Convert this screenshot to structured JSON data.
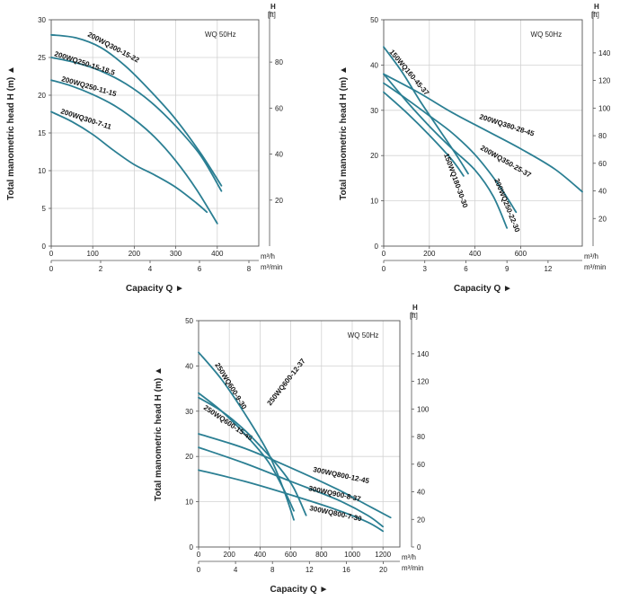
{
  "chart_data": [
    {
      "type": "line",
      "subtitle": "WQ 50Hz",
      "ylabel": "Total manometric head H (m)",
      "y2label": "H",
      "y2unit": "[ft]",
      "xlabel": "Capacity Q",
      "x_unit": "m³/h",
      "x2_unit": "m³/min",
      "xlim": [
        0,
        500
      ],
      "ylim": [
        0,
        30
      ],
      "x_ticks": [
        0,
        100,
        200,
        300,
        400
      ],
      "x2_ticks": [
        "0",
        "2",
        "4",
        "6",
        "8"
      ],
      "x2_max": 8.4,
      "y_ticks": [
        0,
        5,
        10,
        15,
        20,
        25,
        30
      ],
      "y2_ticks": [
        "20",
        "40",
        "60",
        "80"
      ],
      "y2_max": 98.4,
      "series": [
        {
          "name": "200WQ300-15-22",
          "x": [
            0,
            60,
            120,
            180,
            240,
            300,
            360,
            410
          ],
          "values": [
            28,
            27.6,
            26.3,
            23.8,
            20.5,
            16.8,
            12.3,
            8.0
          ]
        },
        {
          "name": "200WQ250-15-18.5",
          "x": [
            0,
            60,
            120,
            180,
            240,
            300,
            360,
            410
          ],
          "values": [
            25,
            24.3,
            23.2,
            21.5,
            19.1,
            15.9,
            12.0,
            7.3
          ]
        },
        {
          "name": "200WQ250-11-15",
          "x": [
            0,
            50,
            100,
            150,
            200,
            250,
            300,
            350,
            400
          ],
          "values": [
            22,
            21.2,
            20.1,
            18.7,
            16.8,
            14.4,
            11.3,
            7.5,
            3.0
          ]
        },
        {
          "name": "200WQ300-7-11",
          "x": [
            0,
            50,
            100,
            150,
            200,
            250,
            300,
            350,
            375
          ],
          "values": [
            17.8,
            16.5,
            14.8,
            12.7,
            10.8,
            9.4,
            7.8,
            5.7,
            4.5
          ]
        }
      ]
    },
    {
      "type": "line",
      "subtitle": "WQ 50Hz",
      "ylabel": "Total manometric head H (m)",
      "y2label": "H",
      "y2unit": "[ft]",
      "xlabel": "Capacity Q",
      "x_unit": "m³/h",
      "x2_unit": "m³/min",
      "xlim": [
        0,
        870
      ],
      "ylim": [
        0,
        50
      ],
      "x_ticks": [
        0,
        200,
        400,
        600
      ],
      "x2_ticks": [
        "0",
        "3",
        "6",
        "9",
        "12"
      ],
      "x2_max": 14.5,
      "y_ticks": [
        0,
        10,
        20,
        30,
        40,
        50
      ],
      "y2_ticks": [
        "20",
        "40",
        "60",
        "80",
        "100",
        "120",
        "140"
      ],
      "y2_max": 164,
      "series": [
        {
          "name": "150WQ160-45-37",
          "x": [
            0,
            80,
            160,
            240,
            320,
            370
          ],
          "values": [
            44,
            38.5,
            32,
            26,
            20,
            16
          ]
        },
        {
          "name": "200WQ380-28-45",
          "x": [
            0,
            150,
            300,
            450,
            600,
            750,
            870
          ],
          "values": [
            38,
            34,
            29.5,
            25.5,
            21.5,
            17,
            12
          ]
        },
        {
          "name": "200WQ350-25-37",
          "x": [
            0,
            100,
            200,
            300,
            400,
            500,
            580
          ],
          "values": [
            36,
            32.5,
            28.8,
            25,
            20.2,
            13.8,
            7.5
          ]
        },
        {
          "name": "150WQ180-30-30",
          "x": [
            0,
            100,
            200,
            300,
            350
          ],
          "values": [
            34,
            29.5,
            24.5,
            19,
            15.5
          ]
        },
        {
          "name": "200WQ250-22-30",
          "x": [
            0,
            100,
            200,
            300,
            400,
            480,
            540
          ],
          "values": [
            38,
            32,
            26.5,
            21.5,
            16.8,
            11,
            4
          ]
        }
      ]
    },
    {
      "type": "line",
      "subtitle": "WQ 50Hz",
      "ylabel": "Total manometric head H (m)",
      "y2label": "H",
      "y2unit": "[ft]",
      "xlabel": "Capacity Q",
      "x_unit": "m³/h",
      "x2_unit": "m³/min",
      "xlim": [
        0,
        1310
      ],
      "ylim": [
        0,
        50
      ],
      "x_ticks": [
        0,
        200,
        400,
        600,
        800,
        1000,
        1200
      ],
      "x2_ticks": [
        "0",
        "4",
        "8",
        "12",
        "16",
        "20"
      ],
      "x2_max": 21.8,
      "y_ticks": [
        0,
        10,
        20,
        30,
        40,
        50
      ],
      "y2_ticks": [
        "0",
        "20",
        "40",
        "60",
        "80",
        "100",
        "120",
        "140"
      ],
      "y2_max": 164,
      "series": [
        {
          "name": "250WQ600-9-30",
          "x": [
            0,
            150,
            300,
            450,
            550,
            620
          ],
          "values": [
            43,
            37,
            29.5,
            21,
            13,
            6
          ]
        },
        {
          "name": "250WQ600-15-45",
          "x": [
            0,
            150,
            300,
            450,
            550,
            620
          ],
          "values": [
            34,
            30,
            25,
            19,
            13,
            8
          ]
        },
        {
          "name": "250WQ600-12-37",
          "x": [
            0,
            150,
            300,
            450,
            550,
            620,
            700
          ],
          "values": [
            33,
            30,
            25.8,
            20.5,
            16.5,
            13,
            7
          ]
        },
        {
          "name": "300WQ800-12-45",
          "x": [
            0,
            300,
            600,
            900,
            1100,
            1250
          ],
          "values": [
            25,
            21.8,
            17.5,
            12.8,
            9.2,
            6.5
          ]
        },
        {
          "name": "300WQ900-8-37",
          "x": [
            0,
            300,
            600,
            900,
            1100,
            1200
          ],
          "values": [
            22,
            18.5,
            14.5,
            10.5,
            7,
            4.5
          ]
        },
        {
          "name": "300WQ800-7-30",
          "x": [
            0,
            300,
            600,
            900,
            1100,
            1200
          ],
          "values": [
            17,
            14.5,
            11.5,
            8.2,
            5.5,
            3.5
          ]
        }
      ]
    }
  ]
}
